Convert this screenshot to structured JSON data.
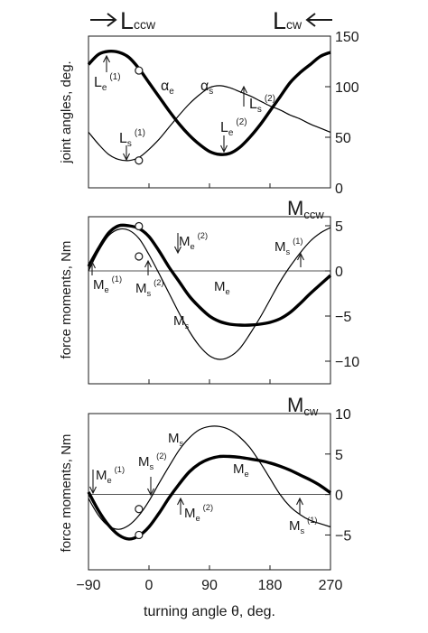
{
  "top_labels": {
    "ccw": "L",
    "ccw_sub": "ccw",
    "cw": "L",
    "cw_sub": "cw"
  },
  "chart_data": [
    {
      "type": "line",
      "ylabel": "joint angles, deg.",
      "xlim": [
        -90,
        270
      ],
      "ylim": [
        0,
        150
      ],
      "yticks": [
        0,
        50,
        100,
        150
      ],
      "series": [
        {
          "name": "α_e",
          "color": "#000000",
          "thick": true,
          "x": [
            -90,
            -75,
            -60,
            -45,
            -30,
            -15,
            0,
            15,
            30,
            45,
            60,
            75,
            90,
            105,
            120,
            135,
            150,
            165,
            180,
            195,
            210,
            225,
            240,
            255,
            270
          ],
          "y": [
            122,
            132,
            135,
            134,
            129,
            118,
            104,
            90,
            76,
            63,
            52,
            43,
            36,
            33,
            34,
            40,
            50,
            62,
            76,
            90,
            104,
            114,
            122,
            130,
            134
          ]
        },
        {
          "name": "α_s",
          "color": "#000000",
          "thick": false,
          "x": [
            -90,
            -75,
            -60,
            -45,
            -30,
            -15,
            0,
            15,
            30,
            45,
            60,
            75,
            90,
            105,
            120,
            135,
            150,
            165,
            180,
            195,
            210,
            225,
            240,
            255,
            270
          ],
          "y": [
            55,
            43,
            33,
            28,
            27,
            30,
            38,
            48,
            60,
            72,
            83,
            92,
            99,
            101,
            99,
            95,
            91,
            86,
            81,
            77,
            72,
            68,
            63,
            59,
            55
          ]
        }
      ],
      "markers": [
        {
          "x": -15,
          "y": 116
        },
        {
          "x": -15,
          "y": 27
        }
      ]
    },
    {
      "type": "line",
      "ylabel": "force moments, Nm",
      "corner_label": "M",
      "corner_sub": "ccw",
      "xlim": [
        -90,
        270
      ],
      "ylim": [
        -12.5,
        6
      ],
      "yticks": [
        5,
        0,
        -5,
        -10
      ],
      "series": [
        {
          "name": "M_e",
          "color": "#000000",
          "thick": true,
          "x": [
            -90,
            -75,
            -60,
            -45,
            -30,
            -15,
            0,
            15,
            30,
            45,
            60,
            75,
            90,
            105,
            120,
            135,
            150,
            165,
            180,
            195,
            210,
            225,
            240,
            255,
            270
          ],
          "y": [
            0.5,
            2.5,
            4.2,
            5.0,
            5.0,
            4.7,
            3.8,
            2.2,
            0.4,
            -1.2,
            -2.8,
            -4.0,
            -5.0,
            -5.6,
            -5.9,
            -6.0,
            -6.0,
            -5.9,
            -5.7,
            -5.3,
            -4.6,
            -3.6,
            -2.5,
            -1.5,
            -0.5
          ]
        },
        {
          "name": "M_s",
          "color": "#000000",
          "thick": false,
          "x": [
            -90,
            -75,
            -60,
            -45,
            -30,
            -15,
            0,
            15,
            30,
            45,
            60,
            75,
            90,
            105,
            120,
            135,
            150,
            165,
            180,
            195,
            210,
            225,
            240,
            255,
            270
          ],
          "y": [
            0.0,
            2.2,
            3.9,
            4.6,
            4.5,
            3.6,
            1.8,
            -0.3,
            -2.5,
            -4.7,
            -6.7,
            -8.3,
            -9.4,
            -9.8,
            -9.5,
            -8.6,
            -7.0,
            -5.2,
            -3.2,
            -1.2,
            0.5,
            2.0,
            3.3,
            4.2,
            4.8
          ]
        }
      ],
      "markers": [
        {
          "x": -15,
          "y": 4.95
        },
        {
          "x": -15,
          "y": 1.6
        }
      ]
    },
    {
      "type": "line",
      "ylabel": "force moments, Nm",
      "corner_label": "M",
      "corner_sub": "cw",
      "xlim": [
        -90,
        270
      ],
      "ylim": [
        -9.3,
        10
      ],
      "yticks": [
        10,
        5,
        0,
        -5
      ],
      "xticks": [
        -90,
        0,
        90,
        180,
        270
      ],
      "xlabel": "turning angle θ, deg.",
      "series": [
        {
          "name": "M_e",
          "color": "#000000",
          "thick": true,
          "x": [
            -90,
            -75,
            -60,
            -45,
            -30,
            -15,
            0,
            15,
            30,
            45,
            60,
            75,
            90,
            105,
            120,
            135,
            150,
            165,
            180,
            195,
            210,
            225,
            240,
            255,
            270
          ],
          "y": [
            0.3,
            -2.0,
            -3.8,
            -5.0,
            -5.5,
            -5.1,
            -4.0,
            -2.3,
            -0.4,
            1.3,
            2.8,
            3.8,
            4.4,
            4.7,
            4.7,
            4.6,
            4.4,
            4.2,
            3.9,
            3.5,
            3.0,
            2.4,
            1.8,
            1.1,
            0.2
          ]
        },
        {
          "name": "M_s",
          "color": "#000000",
          "thick": false,
          "x": [
            -90,
            -75,
            -60,
            -45,
            -30,
            -15,
            0,
            15,
            30,
            45,
            60,
            75,
            90,
            105,
            120,
            135,
            150,
            165,
            180,
            195,
            210,
            225,
            240,
            255,
            270
          ],
          "y": [
            -0.5,
            -2.6,
            -3.9,
            -4.3,
            -3.8,
            -2.6,
            -0.8,
            1.4,
            3.5,
            5.5,
            7.0,
            8.0,
            8.4,
            8.4,
            8.0,
            7.1,
            5.8,
            4.0,
            2.0,
            0.0,
            -1.5,
            -2.5,
            -3.2,
            -3.6,
            -4.0
          ]
        }
      ],
      "markers": [
        {
          "x": -15,
          "y": -1.8
        },
        {
          "x": -15,
          "y": -5.0
        }
      ]
    }
  ],
  "annotations": {
    "a1": {
      "main": "L",
      "sub": "e",
      "sup": "(1)"
    },
    "a2": {
      "main": "α",
      "sub": "e"
    },
    "a3": {
      "main": "α",
      "sub": "s"
    },
    "a4": {
      "main": "L",
      "sub": "s",
      "sup": "(2)"
    },
    "a5": {
      "main": "L",
      "sub": "e",
      "sup": "(2)"
    },
    "a6": {
      "main": "L",
      "sub": "s",
      "sup": "(1)"
    },
    "b1": {
      "main": "M",
      "sub": "e",
      "sup": "(2)"
    },
    "b2": {
      "main": "M",
      "sub": "s",
      "sup": "(1)"
    },
    "b3": {
      "main": "M",
      "sub": "e",
      "sup": "(1)"
    },
    "b4": {
      "main": "M",
      "sub": "s",
      "sup": "(2)"
    },
    "b5": {
      "main": "M",
      "sub": "e"
    },
    "b6": {
      "main": "M",
      "sub": "s"
    },
    "c1": {
      "main": "M",
      "sub": "s"
    },
    "c2": {
      "main": "M",
      "sub": "e"
    },
    "c3": {
      "main": "M",
      "sub": "e",
      "sup": "(1)"
    },
    "c4": {
      "main": "M",
      "sub": "s",
      "sup": "(2)"
    },
    "c5": {
      "main": "M",
      "sub": "e",
      "sup": "(2)"
    },
    "c6": {
      "main": "M",
      "sub": "s",
      "sup": "(1)"
    }
  }
}
